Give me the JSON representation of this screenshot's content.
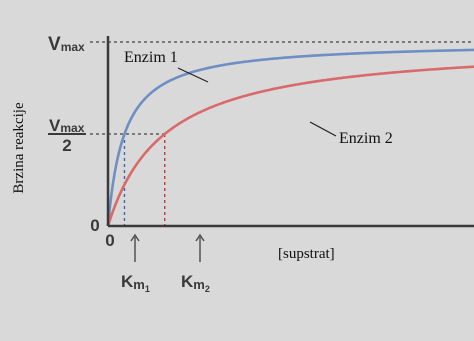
{
  "chart_data": {
    "type": "line",
    "title": "",
    "ylabel": "Brzina reakcije",
    "xlabel": "[supstrat]",
    "y_ticks": {
      "top": {
        "symbol": "V",
        "subscript": "max"
      },
      "half": {
        "numerator_symbol": "V",
        "numerator_subscript": "max",
        "denominator": "2"
      },
      "zero": "0"
    },
    "x_ticks": {
      "zero": "0",
      "km1": {
        "symbol": "K",
        "subscript": "m",
        "sub_index": "1"
      },
      "km2": {
        "symbol": "K",
        "subscript": "m",
        "sub_index": "2"
      }
    },
    "vmax": 1,
    "xlim": [
      0,
      10
    ],
    "ylim": [
      0,
      1
    ],
    "series": [
      {
        "name": "Enzim 1",
        "km": 0.45,
        "color": "#6f8ec4"
      },
      {
        "name": "Enzim 2",
        "km": 1.55,
        "color": "#d96a6a"
      }
    ],
    "guide_colors": {
      "km1": "#3f63b5",
      "km2": "#c33a3a",
      "horizontal": "#5a5a5a"
    }
  }
}
